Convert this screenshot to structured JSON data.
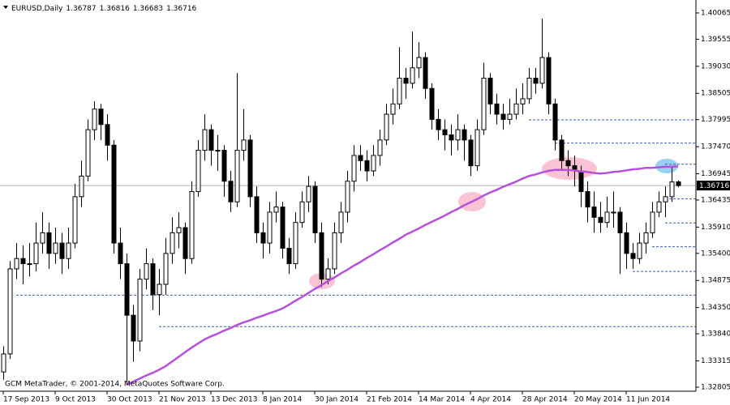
{
  "chart_data": {
    "type": "candlestick",
    "symbol": "EURUSD,Daily",
    "footer": "GCM MetaTrader, © 2001-2014, MetaQuotes Software Corp.",
    "categories": [
      "17 Sep 2013",
      null,
      null,
      null,
      null,
      null,
      null,
      null,
      "9 Oct 2013",
      null,
      null,
      null,
      null,
      null,
      null,
      null,
      "30 Oct 2013",
      null,
      null,
      null,
      null,
      null,
      null,
      null,
      "21 Nov 2013",
      null,
      null,
      null,
      null,
      null,
      null,
      null,
      "13 Dec 2013",
      null,
      null,
      null,
      null,
      null,
      null,
      null,
      "8 Jan 2014",
      null,
      null,
      null,
      null,
      null,
      null,
      null,
      "30 Jan 2014",
      null,
      null,
      null,
      null,
      null,
      null,
      null,
      "21 Feb 2014",
      null,
      null,
      null,
      null,
      null,
      null,
      null,
      "14 Mar 2014",
      null,
      null,
      null,
      null,
      null,
      null,
      null,
      "4 Apr 2014",
      null,
      null,
      null,
      null,
      null,
      null,
      null,
      "28 Apr 2014",
      null,
      null,
      null,
      null,
      null,
      null,
      null,
      "20 May 2014",
      null,
      null,
      null,
      null,
      null,
      null,
      null,
      "11 Jun 2014",
      null,
      null,
      null,
      null,
      null,
      null,
      null,
      null
    ],
    "ohlc": [
      [
        1.331,
        1.336,
        1.3295,
        1.3345
      ],
      [
        1.3345,
        1.3525,
        1.3335,
        1.351
      ],
      [
        1.351,
        1.356,
        1.349,
        1.353
      ],
      [
        1.353,
        1.3555,
        1.348,
        1.352
      ],
      [
        1.352,
        1.356,
        1.3495,
        1.352
      ],
      [
        1.352,
        1.36,
        1.3505,
        1.356
      ],
      [
        1.356,
        1.362,
        1.354,
        1.358
      ],
      [
        1.358,
        1.36,
        1.351,
        1.354
      ],
      [
        1.354,
        1.359,
        1.352,
        1.356
      ],
      [
        1.356,
        1.358,
        1.35,
        1.353
      ],
      [
        1.353,
        1.359,
        1.351,
        1.356
      ],
      [
        1.356,
        1.3675,
        1.355,
        1.365
      ],
      [
        1.365,
        1.372,
        1.363,
        1.369
      ],
      [
        1.369,
        1.38,
        1.368,
        1.378
      ],
      [
        1.378,
        1.3835,
        1.376,
        1.382
      ],
      [
        1.382,
        1.383,
        1.376,
        1.379
      ],
      [
        1.379,
        1.381,
        1.372,
        1.375
      ],
      [
        1.375,
        1.376,
        1.354,
        1.356
      ],
      [
        1.356,
        1.359,
        1.349,
        1.352
      ],
      [
        1.352,
        1.354,
        1.329,
        1.342
      ],
      [
        1.342,
        1.344,
        1.333,
        1.337
      ],
      [
        1.337,
        1.351,
        1.335,
        1.349
      ],
      [
        1.349,
        1.355,
        1.347,
        1.352
      ],
      [
        1.352,
        1.353,
        1.343,
        1.346
      ],
      [
        1.346,
        1.351,
        1.342,
        1.348
      ],
      [
        1.348,
        1.357,
        1.346,
        1.354
      ],
      [
        1.354,
        1.361,
        1.352,
        1.358
      ],
      [
        1.358,
        1.362,
        1.355,
        1.359
      ],
      [
        1.359,
        1.36,
        1.35,
        1.353
      ],
      [
        1.353,
        1.368,
        1.352,
        1.366
      ],
      [
        1.366,
        1.376,
        1.365,
        1.374
      ],
      [
        1.374,
        1.381,
        1.372,
        1.378
      ],
      [
        1.378,
        1.379,
        1.371,
        1.374
      ],
      [
        1.374,
        1.377,
        1.37,
        1.374
      ],
      [
        1.374,
        1.375,
        1.365,
        1.368
      ],
      [
        1.368,
        1.37,
        1.362,
        1.364
      ],
      [
        1.364,
        1.389,
        1.363,
        1.374
      ],
      [
        1.374,
        1.382,
        1.372,
        1.376
      ],
      [
        1.376,
        1.377,
        1.363,
        1.365
      ],
      [
        1.365,
        1.367,
        1.356,
        1.358
      ],
      [
        1.358,
        1.36,
        1.353,
        1.356
      ],
      [
        1.356,
        1.364,
        1.354,
        1.362
      ],
      [
        1.362,
        1.366,
        1.36,
        1.363
      ],
      [
        1.363,
        1.364,
        1.353,
        1.355
      ],
      [
        1.355,
        1.357,
        1.35,
        1.352
      ],
      [
        1.352,
        1.362,
        1.351,
        1.36
      ],
      [
        1.36,
        1.366,
        1.359,
        1.364
      ],
      [
        1.364,
        1.369,
        1.362,
        1.367
      ],
      [
        1.367,
        1.368,
        1.356,
        1.358
      ],
      [
        1.358,
        1.36,
        1.3475,
        1.349
      ],
      [
        1.349,
        1.353,
        1.348,
        1.351
      ],
      [
        1.351,
        1.36,
        1.35,
        1.358
      ],
      [
        1.358,
        1.364,
        1.356,
        1.362
      ],
      [
        1.362,
        1.37,
        1.36,
        1.368
      ],
      [
        1.368,
        1.375,
        1.366,
        1.373
      ],
      [
        1.373,
        1.375,
        1.37,
        1.372
      ],
      [
        1.372,
        1.374,
        1.368,
        1.37
      ],
      [
        1.37,
        1.375,
        1.369,
        1.373
      ],
      [
        1.373,
        1.378,
        1.371,
        1.376
      ],
      [
        1.376,
        1.383,
        1.375,
        1.381
      ],
      [
        1.381,
        1.386,
        1.379,
        1.383
      ],
      [
        1.383,
        1.394,
        1.382,
        1.388
      ],
      [
        1.388,
        1.39,
        1.384,
        1.387
      ],
      [
        1.387,
        1.397,
        1.386,
        1.39
      ],
      [
        1.39,
        1.395,
        1.388,
        1.392
      ],
      [
        1.392,
        1.393,
        1.384,
        1.386
      ],
      [
        1.386,
        1.387,
        1.378,
        1.38
      ],
      [
        1.38,
        1.382,
        1.376,
        1.378
      ],
      [
        1.378,
        1.38,
        1.374,
        1.377
      ],
      [
        1.377,
        1.379,
        1.373,
        1.376
      ],
      [
        1.376,
        1.381,
        1.374,
        1.378
      ],
      [
        1.378,
        1.379,
        1.372,
        1.376
      ],
      [
        1.376,
        1.377,
        1.369,
        1.371
      ],
      [
        1.371,
        1.38,
        1.37,
        1.378
      ],
      [
        1.378,
        1.391,
        1.377,
        1.388
      ],
      [
        1.388,
        1.389,
        1.381,
        1.383
      ],
      [
        1.383,
        1.385,
        1.379,
        1.381
      ],
      [
        1.381,
        1.383,
        1.378,
        1.38
      ],
      [
        1.38,
        1.384,
        1.379,
        1.381
      ],
      [
        1.381,
        1.386,
        1.38,
        1.383
      ],
      [
        1.383,
        1.387,
        1.381,
        1.384
      ],
      [
        1.384,
        1.39,
        1.383,
        1.388
      ],
      [
        1.388,
        1.39,
        1.385,
        1.387
      ],
      [
        1.387,
        1.3995,
        1.386,
        1.392
      ],
      [
        1.392,
        1.393,
        1.381,
        1.383
      ],
      [
        1.383,
        1.384,
        1.374,
        1.376
      ],
      [
        1.376,
        1.377,
        1.37,
        1.372
      ],
      [
        1.372,
        1.374,
        1.369,
        1.371
      ],
      [
        1.371,
        1.373,
        1.367,
        1.37
      ],
      [
        1.37,
        1.371,
        1.363,
        1.366
      ],
      [
        1.366,
        1.368,
        1.36,
        1.363
      ],
      [
        1.363,
        1.366,
        1.358,
        1.361
      ],
      [
        1.361,
        1.364,
        1.358,
        1.36
      ],
      [
        1.36,
        1.365,
        1.359,
        1.362
      ],
      [
        1.362,
        1.366,
        1.359,
        1.362
      ],
      [
        1.362,
        1.363,
        1.35,
        1.358
      ],
      [
        1.358,
        1.36,
        1.351,
        1.354
      ],
      [
        1.354,
        1.356,
        1.351,
        1.353
      ],
      [
        1.353,
        1.358,
        1.352,
        1.356
      ],
      [
        1.356,
        1.36,
        1.354,
        1.358
      ],
      [
        1.358,
        1.364,
        1.357,
        1.362
      ],
      [
        1.362,
        1.366,
        1.361,
        1.364
      ],
      [
        1.364,
        1.367,
        1.361,
        1.365
      ],
      [
        1.365,
        1.371,
        1.364,
        1.36787
      ],
      [
        1.36787,
        1.36816,
        1.36683,
        1.36716
      ]
    ],
    "moving_average": {
      "color": "#b450dc",
      "values": [
        null,
        null,
        null,
        null,
        null,
        null,
        null,
        null,
        null,
        null,
        null,
        null,
        null,
        null,
        null,
        null,
        null,
        null,
        null,
        1.3285,
        1.3291,
        1.3297,
        1.3303,
        1.3308,
        1.3314,
        1.3321,
        1.333,
        1.3339,
        1.3348,
        1.3357,
        1.3365,
        1.3373,
        1.3379,
        1.3384,
        1.339,
        1.3395,
        1.3401,
        1.3406,
        1.341,
        1.3415,
        1.3419,
        1.3424,
        1.3428,
        1.3433,
        1.344,
        1.3448,
        1.3455,
        1.3463,
        1.3471,
        1.3478,
        1.3486,
        1.3493,
        1.3501,
        1.3508,
        1.3516,
        1.3523,
        1.3531,
        1.3538,
        1.3546,
        1.3553,
        1.3561,
        1.3568,
        1.3576,
        1.3582,
        1.3588,
        1.3595,
        1.3601,
        1.3607,
        1.3613,
        1.362,
        1.3626,
        1.3633,
        1.3639,
        1.3645,
        1.3652,
        1.3658,
        1.3663,
        1.3669,
        1.3674,
        1.3679,
        1.3685,
        1.369,
        1.3693,
        1.3697,
        1.37,
        1.3702,
        1.3702,
        1.3702,
        1.3701,
        1.3699,
        1.3698,
        1.3696,
        1.3695,
        1.3696,
        1.3698,
        1.3699,
        1.3701,
        1.3703,
        1.3704,
        1.3706,
        1.3706,
        1.3707,
        1.3708,
        1.3708,
        1.3709
      ]
    },
    "levels": {
      "color": "#3c5ab4",
      "prices": [
        1.3799,
        1.3754,
        1.3713,
        1.3646,
        1.3599,
        1.3553,
        1.3505,
        1.3459,
        1.3398
      ],
      "start": [
        81,
        85,
        102,
        102,
        102,
        100,
        97,
        2,
        24
      ]
    },
    "ylim": [
      1.32726,
      1.40316
    ],
    "yticks": [
      1.40065,
      1.39555,
      {
        "value": 1.3903,
        "label": "1.39030"
      },
      1.38505,
      1.37995,
      {
        "value": 1.3747,
        "label": "1.37470"
      },
      1.36945,
      1.36435,
      {
        "value": 1.3591,
        "label": "1.35910"
      },
      {
        "value": 1.354,
        "label": "1.35400"
      },
      1.34875,
      {
        "value": 1.3435,
        "label": "1.34350"
      },
      {
        "value": 1.3384,
        "label": "1.33840"
      },
      1.33315,
      1.32805
    ],
    "bull_color": "#ffffff",
    "bear_color": "#000000"
  }
}
